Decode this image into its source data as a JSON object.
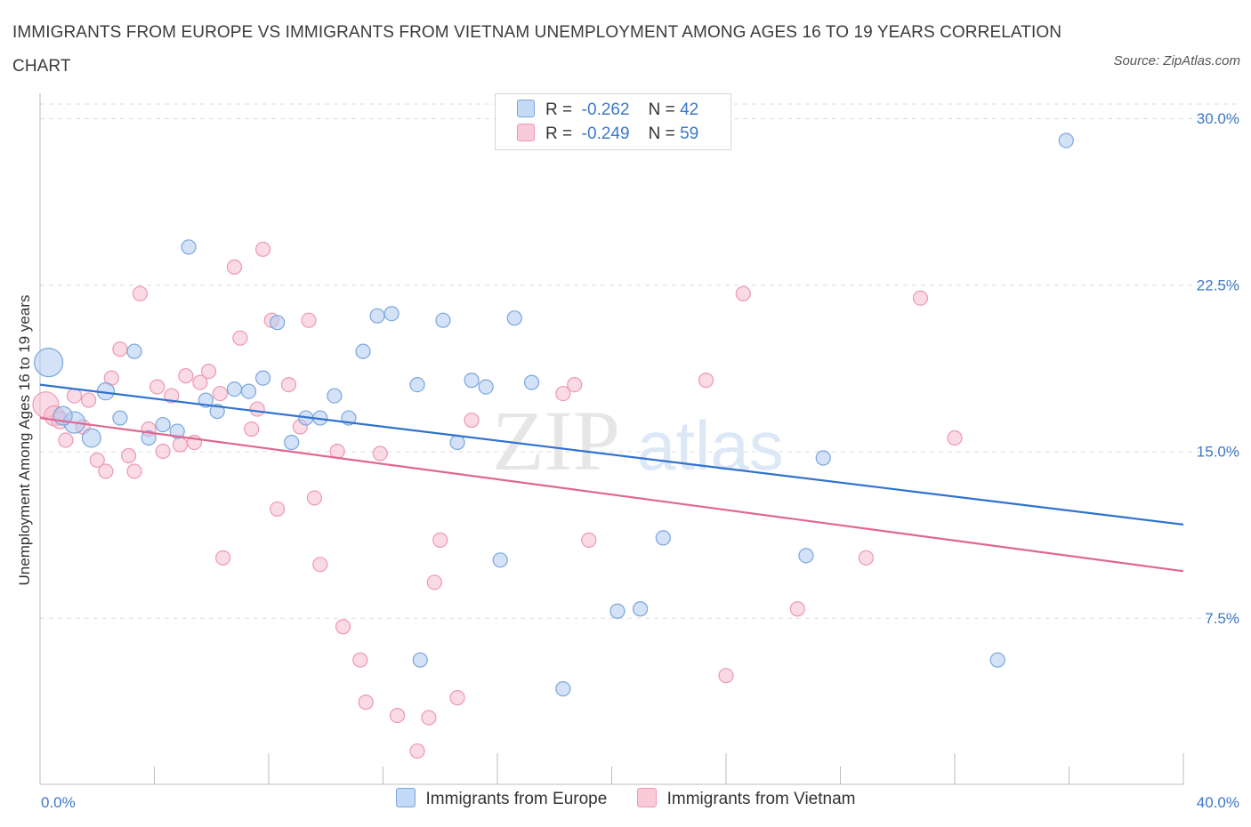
{
  "title": "IMMIGRANTS FROM EUROPE VS IMMIGRANTS FROM VIETNAM UNEMPLOYMENT AMONG AGES 16 TO 19 YEARS CORRELATION CHART",
  "source": "Source: ZipAtlas.com",
  "watermark": {
    "zip": "ZIP",
    "atlas": "atlas"
  },
  "colors": {
    "europe_fill": "#aecbf0",
    "europe_stroke": "#7aa6de",
    "europe_line": "#2f72cf",
    "vietnam_fill": "#f6bccd",
    "vietnam_stroke": "#ee98b4",
    "vietnam_line": "#e0678f",
    "tick": "#3c78c8",
    "grid": "#dcdcdc"
  },
  "legend": {
    "rows": [
      {
        "r_label": "R =",
        "r_value": "-0.262",
        "n_label": "N =",
        "n_value": "42"
      },
      {
        "r_label": "R =",
        "r_value": "-0.249",
        "n_label": "N =",
        "n_value": "59"
      }
    ]
  },
  "chart_data": {
    "type": "scatter",
    "title": "IMMIGRANTS FROM EUROPE VS IMMIGRANTS FROM VIETNAM UNEMPLOYMENT AMONG AGES 16 TO 19 YEARS CORRELATION CHART",
    "xlabel": "",
    "ylabel": "Unemployment Among Ages 16 to 19 years",
    "xlim": [
      0,
      40
    ],
    "ylim": [
      0,
      30
    ],
    "x_tick_labels": [
      {
        "value": 0,
        "label": "0.0%"
      },
      {
        "value": 40,
        "label": "40.0%"
      }
    ],
    "y_tick_labels": [
      {
        "value": 7.5,
        "label": "7.5%"
      },
      {
        "value": 15,
        "label": "15.0%"
      },
      {
        "value": 22.5,
        "label": "22.5%"
      },
      {
        "value": 30,
        "label": "30.0%"
      }
    ],
    "grid": "horizontal dashed",
    "legend_position": "top-center",
    "series": [
      {
        "name": "Immigrants from Europe",
        "trend": {
          "x": [
            0,
            40
          ],
          "y": [
            18.0,
            11.7
          ]
        },
        "points": [
          [
            0.3,
            19.0,
            2
          ],
          [
            1.2,
            16.3,
            1.5
          ],
          [
            0.8,
            16.6,
            1.3
          ],
          [
            1.8,
            15.6,
            1.3
          ],
          [
            2.3,
            17.7,
            1.2
          ],
          [
            2.8,
            16.5,
            1
          ],
          [
            3.3,
            19.5,
            1
          ],
          [
            3.8,
            15.6,
            1
          ],
          [
            4.3,
            16.2,
            1
          ],
          [
            4.8,
            15.9,
            1
          ],
          [
            5.2,
            24.2,
            1
          ],
          [
            5.8,
            17.3,
            1
          ],
          [
            6.2,
            16.8,
            1
          ],
          [
            6.8,
            17.8,
            1
          ],
          [
            7.3,
            17.7,
            1
          ],
          [
            7.8,
            18.3,
            1
          ],
          [
            8.3,
            20.8,
            1
          ],
          [
            8.8,
            15.4,
            1
          ],
          [
            9.3,
            16.5,
            1
          ],
          [
            9.8,
            16.5,
            1
          ],
          [
            10.3,
            17.5,
            1
          ],
          [
            10.8,
            16.5,
            1
          ],
          [
            11.3,
            19.5,
            1
          ],
          [
            11.8,
            21.1,
            1
          ],
          [
            12.3,
            21.2,
            1
          ],
          [
            13.2,
            18.0,
            1
          ],
          [
            14.1,
            20.9,
            1
          ],
          [
            14.6,
            15.4,
            1
          ],
          [
            15.1,
            18.2,
            1
          ],
          [
            15.6,
            17.9,
            1
          ],
          [
            16.1,
            10.1,
            1
          ],
          [
            16.6,
            21.0,
            1
          ],
          [
            17.2,
            18.1,
            1
          ],
          [
            13.3,
            5.6,
            1
          ],
          [
            18.3,
            4.3,
            1
          ],
          [
            20.2,
            7.8,
            1
          ],
          [
            21.0,
            7.9,
            1
          ],
          [
            21.8,
            11.1,
            1
          ],
          [
            26.8,
            10.3,
            1
          ],
          [
            27.4,
            14.7,
            1
          ],
          [
            33.5,
            5.6,
            1
          ],
          [
            35.9,
            29.0,
            1
          ]
        ]
      },
      {
        "name": "Immigrants from Vietnam",
        "trend": {
          "x": [
            0,
            40
          ],
          "y": [
            16.5,
            9.6
          ]
        },
        "points": [
          [
            0.2,
            17.1,
            1.8
          ],
          [
            0.5,
            16.6,
            1.4
          ],
          [
            0.7,
            16.4,
            1.2
          ],
          [
            0.9,
            15.5,
            1
          ],
          [
            1.2,
            17.5,
            1
          ],
          [
            1.5,
            16.1,
            1
          ],
          [
            1.7,
            17.3,
            1
          ],
          [
            2.0,
            14.6,
            1
          ],
          [
            2.3,
            14.1,
            1
          ],
          [
            2.5,
            18.3,
            1
          ],
          [
            2.8,
            19.6,
            1
          ],
          [
            3.1,
            14.8,
            1
          ],
          [
            3.3,
            14.1,
            1
          ],
          [
            3.5,
            22.1,
            1
          ],
          [
            3.8,
            16.0,
            1
          ],
          [
            4.1,
            17.9,
            1
          ],
          [
            4.3,
            15.0,
            1
          ],
          [
            4.6,
            17.5,
            1
          ],
          [
            4.9,
            15.3,
            1
          ],
          [
            5.1,
            18.4,
            1
          ],
          [
            5.4,
            15.4,
            1
          ],
          [
            5.6,
            18.1,
            1
          ],
          [
            5.9,
            18.6,
            1
          ],
          [
            6.3,
            17.6,
            1
          ],
          [
            6.4,
            10.2,
            1
          ],
          [
            6.8,
            23.3,
            1
          ],
          [
            7.0,
            20.1,
            1
          ],
          [
            7.4,
            16.0,
            1
          ],
          [
            7.6,
            16.9,
            1
          ],
          [
            7.8,
            24.1,
            1
          ],
          [
            8.1,
            20.9,
            1
          ],
          [
            8.3,
            12.4,
            1
          ],
          [
            8.7,
            18.0,
            1
          ],
          [
            9.1,
            16.1,
            1
          ],
          [
            9.4,
            20.9,
            1
          ],
          [
            9.6,
            12.9,
            1
          ],
          [
            9.8,
            9.9,
            1
          ],
          [
            10.4,
            15.0,
            1
          ],
          [
            10.6,
            7.1,
            1
          ],
          [
            11.2,
            5.6,
            1
          ],
          [
            11.4,
            3.7,
            1
          ],
          [
            11.9,
            14.9,
            1
          ],
          [
            12.5,
            3.1,
            1
          ],
          [
            13.2,
            1.5,
            1
          ],
          [
            13.6,
            3.0,
            1
          ],
          [
            13.8,
            9.1,
            1
          ],
          [
            14.0,
            11.0,
            1
          ],
          [
            14.6,
            3.9,
            1
          ],
          [
            15.1,
            16.4,
            1
          ],
          [
            18.3,
            17.6,
            1
          ],
          [
            18.7,
            18.0,
            1
          ],
          [
            19.2,
            11.0,
            1
          ],
          [
            23.3,
            18.2,
            1
          ],
          [
            24.0,
            4.9,
            1
          ],
          [
            24.6,
            22.1,
            1
          ],
          [
            26.5,
            7.9,
            1
          ],
          [
            28.9,
            10.2,
            1
          ],
          [
            30.8,
            21.9,
            1
          ],
          [
            32.0,
            15.6,
            1
          ]
        ]
      }
    ]
  }
}
